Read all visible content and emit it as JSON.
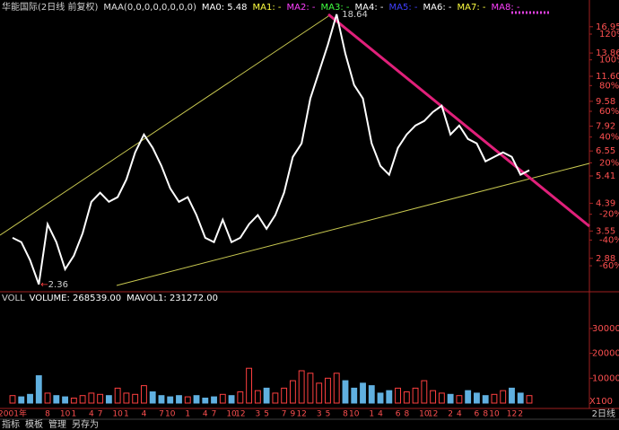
{
  "header": [
    {
      "text": "华能国际(2日线 前复权)",
      "color": "#d0d0d0"
    },
    {
      "text": "MAA(0,0,0,0,0,0,0,0)",
      "color": "#e0e0e0"
    },
    {
      "text": "MA0: 5.48",
      "color": "#ffffff"
    },
    {
      "text": "MA1: -",
      "color": "#ffff40"
    },
    {
      "text": "MA2: -",
      "color": "#ff40ff"
    },
    {
      "text": "MA3: -",
      "color": "#40ff40"
    },
    {
      "text": "MA4: -",
      "color": "#ffffff"
    },
    {
      "text": "MA5: -",
      "color": "#4040ff"
    },
    {
      "text": "MA6: -",
      "color": "#ffffff"
    },
    {
      "text": "MA7: -",
      "color": "#ffff40"
    },
    {
      "text": "MA8: -",
      "color": "#ff40ff"
    }
  ],
  "volume_header": [
    {
      "text": "VOLL",
      "color": "#d0d0d0"
    },
    {
      "text": "VOLUME: 268539.00",
      "color": "#ffffff"
    },
    {
      "text": "MAVOL1: 231272.00",
      "color": "#ffffff"
    }
  ],
  "footer": {
    "tabs": [
      "指标",
      "模板",
      "管理",
      "另存为"
    ],
    "period": "2日线"
  },
  "chart_data": [
    {
      "type": "line",
      "log_scale": true,
      "color": "#ffffff",
      "categories": [
        "2001年",
        null,
        null,
        null,
        "8",
        null,
        "10",
        "1",
        null,
        "4",
        "7",
        null,
        "10",
        "1",
        null,
        "4",
        null,
        "7",
        "10",
        null,
        "1",
        null,
        "4",
        "7",
        null,
        "10",
        "12",
        null,
        "3",
        "5",
        null,
        "7",
        "9",
        "12",
        null,
        "3",
        "5",
        null,
        "8",
        "10",
        null,
        "1",
        "4",
        null,
        "6",
        "8",
        null,
        "10",
        "12",
        null,
        "2",
        "4",
        null,
        "6",
        "8",
        "10",
        null,
        "12",
        "2",
        null
      ],
      "series": [
        {
          "name": "price",
          "color": "#ffffff",
          "values": [
            3.37,
            3.26,
            2.84,
            2.36,
            3.74,
            3.26,
            2.65,
            2.94,
            3.49,
            4.44,
            4.76,
            4.44,
            4.6,
            5.27,
            6.48,
            7.43,
            6.71,
            5.84,
            4.92,
            4.44,
            4.6,
            4.01,
            3.37,
            3.26,
            3.87,
            3.26,
            3.37,
            3.74,
            4.01,
            3.61,
            4.01,
            4.76,
            6.26,
            6.94,
            9.79,
            12.02,
            14.77,
            18.64,
            13.79,
            10.85,
            9.79,
            6.94,
            5.84,
            5.46,
            6.71,
            7.43,
            7.96,
            8.24,
            8.83,
            9.26,
            7.43,
            7.96,
            7.18,
            6.94,
            6.05,
            6.26,
            6.48,
            6.26,
            5.46,
            5.65
          ]
        }
      ],
      "high": 18.64,
      "low": 2.36,
      "low_arrow": "←",
      "ylim": [
        2.23,
        20.8
      ],
      "yticks": [
        16.95,
        13.86,
        {
          "value": 11.6,
          "label": "11.60"
        },
        9.58,
        7.92,
        6.55,
        5.41,
        4.39,
        3.55,
        2.88
      ],
      "y2lim": [
        -80.2,
        146.5
      ],
      "y2ticks": [
        {
          "value": 120,
          "label": "120%"
        },
        {
          "value": 100,
          "label": "100%"
        },
        {
          "value": 80,
          "label": "80%"
        },
        {
          "value": 60,
          "label": "60%"
        },
        {
          "value": 40,
          "label": "40%"
        },
        {
          "value": 20,
          "label": "20%"
        },
        {
          "value": -20,
          "label": "-20%"
        },
        {
          "value": -40,
          "label": "-40%"
        },
        {
          "value": -60,
          "label": "-60%"
        }
      ]
    },
    {
      "type": "bar",
      "up_color": "#ff4040",
      "down_color": "#60b0e0",
      "values": [
        3000,
        2500,
        3500,
        11000,
        4000,
        3000,
        2500,
        2000,
        3000,
        4000,
        3500,
        3000,
        6000,
        4000,
        3500,
        7000,
        4500,
        3000,
        2500,
        3000,
        2500,
        3000,
        2000,
        2500,
        3500,
        3000,
        4500,
        14000,
        5000,
        6000,
        4000,
        6000,
        9000,
        13000,
        12000,
        8000,
        10000,
        12000,
        9000,
        6000,
        8000,
        7000,
        4000,
        5000,
        6000,
        4500,
        6000,
        9000,
        5000,
        4000,
        3500,
        3000,
        5000,
        4000,
        3000,
        3500,
        5000,
        6000,
        4000,
        3000
      ],
      "ylim": [
        0,
        40800
      ],
      "yticks": [
        10000,
        20000,
        30000
      ],
      "unit": "X100"
    }
  ]
}
